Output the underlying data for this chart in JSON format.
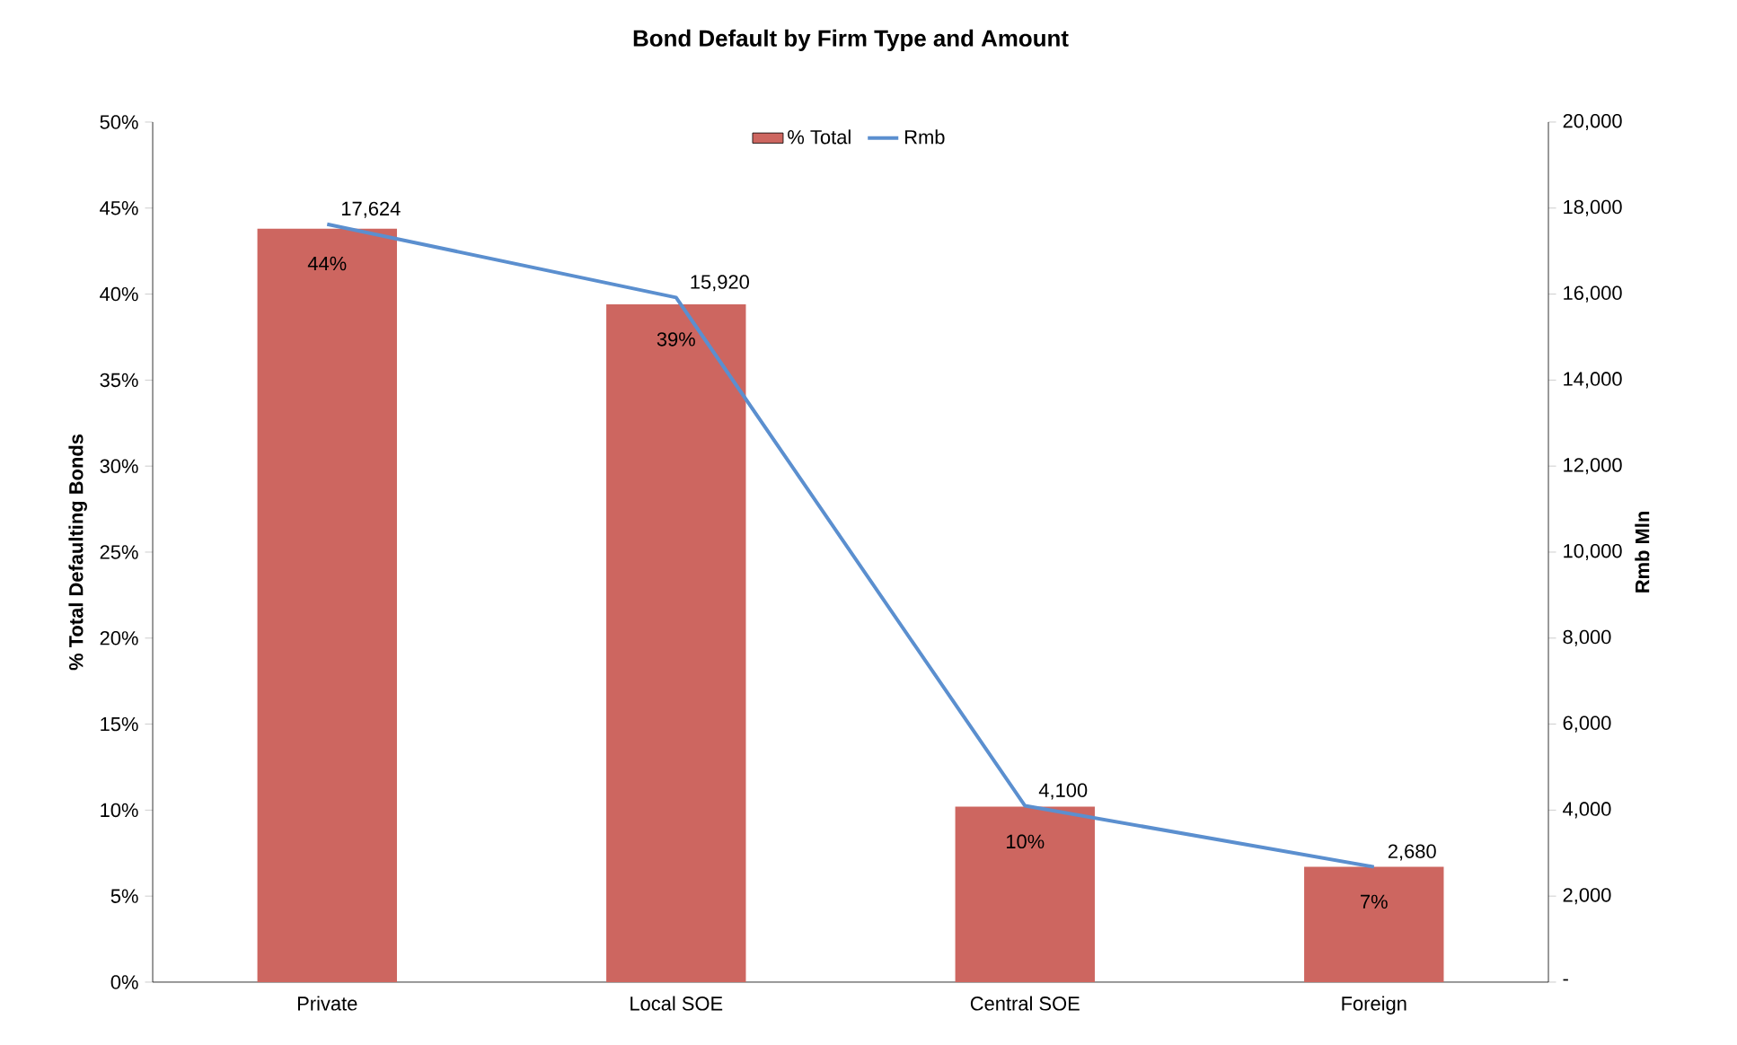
{
  "chart_data": {
    "type": "bar",
    "title": "Bond Default by Firm Type and Amount",
    "ylabel": "% Total Defaulting Bonds",
    "y2label": "Rmb Mln",
    "categories": [
      "Private",
      "Local SOE",
      "Central SOE",
      "Foreign"
    ],
    "series": [
      {
        "name": "% Total",
        "color": "#cd6660",
        "values": [
          43.8,
          39.4,
          10.2,
          6.7
        ],
        "value_labels": [
          "44%",
          "39%",
          "10%",
          "7%"
        ]
      },
      {
        "name": "Rmb",
        "type": "line",
        "axis": "y2",
        "color": "#5b8fcf",
        "values": [
          17624,
          15920,
          4100,
          2680
        ],
        "value_labels": [
          "17,624",
          "15,920",
          "4,100",
          "2,680"
        ],
        "marker": "none",
        "line_style": "solid"
      }
    ],
    "ylim": [
      0,
      50
    ],
    "yticks": [
      {
        "value": 0,
        "label": "0%"
      },
      {
        "value": 5,
        "label": "5%"
      },
      {
        "value": 10,
        "label": "10%"
      },
      {
        "value": 15,
        "label": "15%"
      },
      {
        "value": 20,
        "label": "20%"
      },
      {
        "value": 25,
        "label": "25%"
      },
      {
        "value": 30,
        "label": "30%"
      },
      {
        "value": 35,
        "label": "35%"
      },
      {
        "value": 40,
        "label": "40%"
      },
      {
        "value": 45,
        "label": "45%"
      },
      {
        "value": 50,
        "label": "50%"
      }
    ],
    "y2lim": [
      0,
      20000
    ],
    "y2ticks": [
      {
        "value": 0,
        "label": "-"
      },
      {
        "value": 2000,
        "label": "2,000"
      },
      {
        "value": 4000,
        "label": "4,000"
      },
      {
        "value": 6000,
        "label": "6,000"
      },
      {
        "value": 8000,
        "label": "8,000"
      },
      {
        "value": 10000,
        "label": "10,000"
      },
      {
        "value": 12000,
        "label": "12,000"
      },
      {
        "value": 14000,
        "label": "14,000"
      },
      {
        "value": 16000,
        "label": "16,000"
      },
      {
        "value": 18000,
        "label": "18,000"
      },
      {
        "value": 20000,
        "label": "20,000"
      }
    ],
    "legend": "top",
    "grid": false
  }
}
